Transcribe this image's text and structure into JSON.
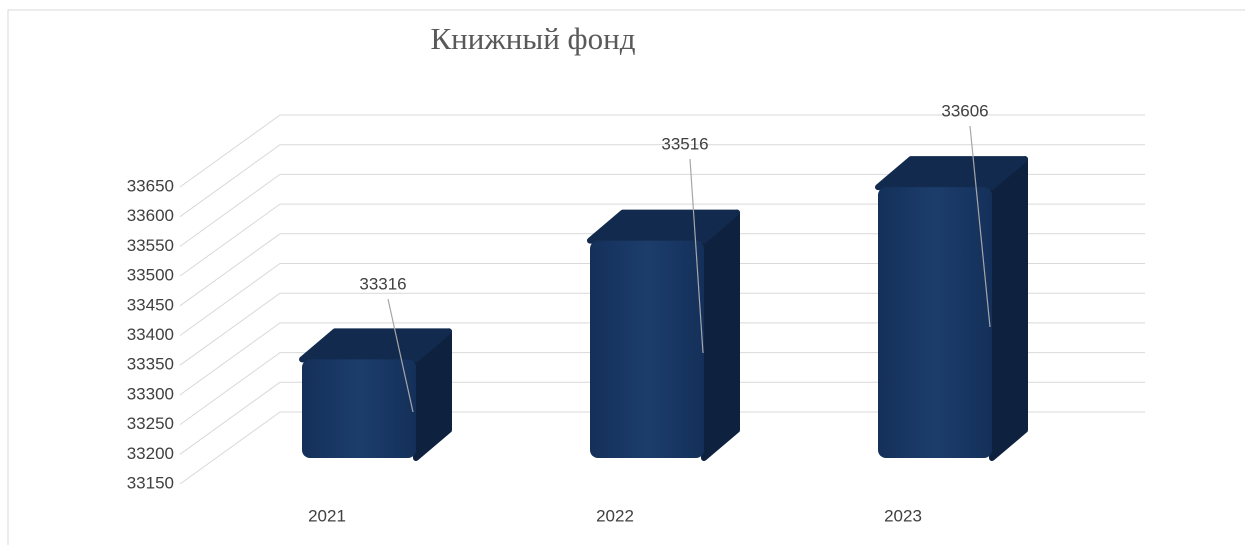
{
  "chart_data": {
    "type": "bar3d",
    "title": "Книжный фонд",
    "categories": [
      "2021",
      "2022",
      "2023"
    ],
    "values": [
      33316,
      33516,
      33606
    ],
    "color": "#1a3a66",
    "ylim": [
      33150,
      33650
    ],
    "yticks": [
      33150,
      33200,
      33250,
      33300,
      33350,
      33400,
      33450,
      33500,
      33550,
      33600,
      33650
    ],
    "grid": true
  }
}
